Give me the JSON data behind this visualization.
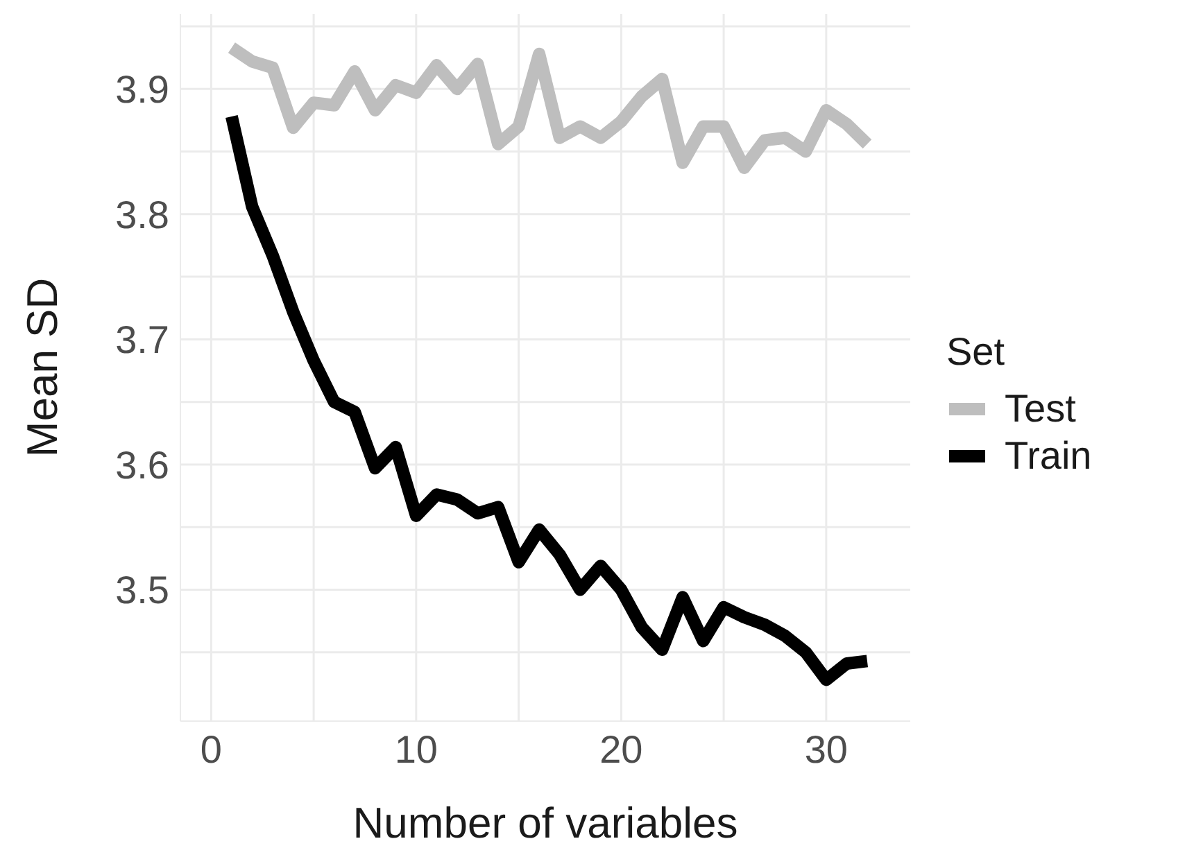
{
  "chart_data": {
    "type": "line",
    "xlabel": "Number of variables",
    "ylabel": "Mean SD",
    "legend_title": "Set",
    "legend": "right",
    "grid": true,
    "marker": "none",
    "line_style": "solid",
    "x": [
      1,
      2,
      3,
      4,
      5,
      6,
      7,
      8,
      9,
      10,
      11,
      12,
      13,
      14,
      15,
      16,
      17,
      18,
      19,
      20,
      21,
      22,
      23,
      24,
      25,
      26,
      27,
      28,
      29,
      30,
      31,
      32
    ],
    "xlim": [
      -1.5,
      34.1
    ],
    "xticks": [
      0,
      {
        "value": 5,
        "label": null
      },
      10,
      {
        "value": 15,
        "label": null
      },
      20,
      {
        "value": 25,
        "label": null
      },
      30
    ],
    "ylim": [
      3.395,
      3.96
    ],
    "yticks": [
      {
        "value": 3.45,
        "label": null
      },
      3.5,
      {
        "value": 3.55,
        "label": null
      },
      3.6,
      {
        "value": 3.65,
        "label": null
      },
      3.7,
      {
        "value": 3.75,
        "label": null
      },
      3.8,
      {
        "value": 3.85,
        "label": null
      },
      3.9,
      {
        "value": 3.95,
        "label": null
      }
    ],
    "series": [
      {
        "name": "Test",
        "color": "#bebebe",
        "values": [
          3.933,
          3.922,
          3.917,
          3.869,
          3.889,
          3.887,
          3.914,
          3.883,
          3.903,
          3.897,
          3.919,
          3.9,
          3.92,
          3.856,
          3.87,
          3.928,
          3.861,
          3.87,
          3.861,
          3.874,
          3.894,
          3.908,
          3.841,
          3.87,
          3.87,
          3.837,
          3.859,
          3.861,
          3.85,
          3.883,
          3.872,
          3.856
        ]
      },
      {
        "name": "Train",
        "color": "#000000",
        "values": [
          3.878,
          3.806,
          3.767,
          3.722,
          3.683,
          3.65,
          3.642,
          3.597,
          3.614,
          3.559,
          3.576,
          3.572,
          3.561,
          3.566,
          3.522,
          3.548,
          3.528,
          3.5,
          3.519,
          3.5,
          3.47,
          3.452,
          3.494,
          3.459,
          3.486,
          3.478,
          3.472,
          3.463,
          3.45,
          3.428,
          3.441,
          3.443
        ]
      }
    ]
  }
}
